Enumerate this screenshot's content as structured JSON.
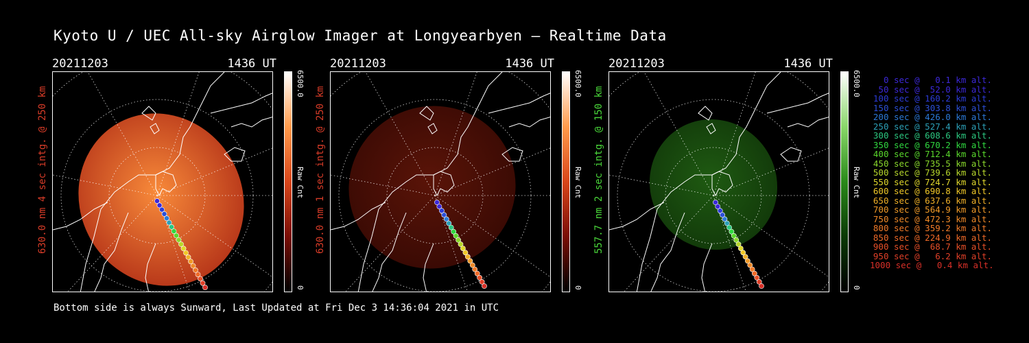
{
  "title": "Kyoto U / UEC All-sky Airglow Imager at Longyearbyen — Realtime Data",
  "footer": "Bottom side is always Sunward, Last Updated at Fri Dec  3 14:36:04 2021 in UTC",
  "panels": [
    {
      "date": "20211203",
      "time": "1436 UT",
      "ylabel": "630.0 nm 4 sec intg. @ 250 km",
      "ylabel_color": "#d83c28",
      "cbar_max": "6500.0",
      "cbar_min": "0",
      "cbar_label": "Raw Cnt",
      "colors": {
        "bright": "#f88a3a",
        "dim": "#b8381a",
        "bar": [
          "#000000",
          "#7a0d05",
          "#d8451a",
          "#ff9a4a",
          "#ffffff"
        ]
      }
    },
    {
      "date": "20211203",
      "time": "1436 UT",
      "ylabel": "630.0 nm 1 sec intg. @ 250 km",
      "ylabel_color": "#d83c28",
      "cbar_max": "6500.0",
      "cbar_min": "0",
      "cbar_label": "Raw Cnt",
      "colors": {
        "bright": "#5a1408",
        "dim": "#3a0a04",
        "bar": [
          "#000000",
          "#7a0d05",
          "#d8451a",
          "#ff9a4a",
          "#ffffff"
        ]
      }
    },
    {
      "date": "20211203",
      "time": "1436 UT",
      "ylabel": "557.7 nm 2 sec intg. @ 150 km",
      "ylabel_color": "#4ad83a",
      "cbar_max": "6500.0",
      "cbar_min": "0",
      "cbar_label": "Raw Cnt",
      "colors": {
        "bright": "#1f5a12",
        "dim": "#123a0a",
        "bar": [
          "#000000",
          "#0b3a06",
          "#2a8a1a",
          "#8ad86a",
          "#ffffff"
        ]
      }
    }
  ],
  "legend": [
    {
      "text": "0 sec @   0.1 km alt.",
      "color": "#3c28d8"
    },
    {
      "text": "50 sec @  52.0 km alt.",
      "color": "#3c28d8"
    },
    {
      "text": "100 sec @ 160.2 km alt.",
      "color": "#2c3cd8"
    },
    {
      "text": "150 sec @ 303.8 km alt.",
      "color": "#2c50d8"
    },
    {
      "text": "200 sec @ 426.0 km alt.",
      "color": "#2c7ad8"
    },
    {
      "text": "250 sec @ 527.4 km alt.",
      "color": "#2ca0b8"
    },
    {
      "text": "300 sec @ 608.6 km alt.",
      "color": "#2cc880"
    },
    {
      "text": "350 sec @ 670.2 km alt.",
      "color": "#30d840"
    },
    {
      "text": "400 sec @ 712.4 km alt.",
      "color": "#5ad82c"
    },
    {
      "text": "450 sec @ 735.5 km alt.",
      "color": "#8ad82c"
    },
    {
      "text": "500 sec @ 739.6 km alt.",
      "color": "#b8d82c"
    },
    {
      "text": "550 sec @ 724.7 km alt.",
      "color": "#e0d82c"
    },
    {
      "text": "600 sec @ 690.8 km alt.",
      "color": "#f0c828"
    },
    {
      "text": "650 sec @ 637.6 km alt.",
      "color": "#f0b028"
    },
    {
      "text": "700 sec @ 564.9 km alt.",
      "color": "#f09a28"
    },
    {
      "text": "750 sec @ 472.3 km alt.",
      "color": "#f08a28"
    },
    {
      "text": "800 sec @ 359.2 km alt.",
      "color": "#f07a28"
    },
    {
      "text": "850 sec @ 224.9 km alt.",
      "color": "#f06a28"
    },
    {
      "text": "900 sec @  68.7 km alt.",
      "color": "#e85028"
    },
    {
      "text": "950 sec @   6.2 km alt.",
      "color": "#e04028"
    },
    {
      "text": "1000 sec @   0.4 km alt.",
      "color": "#d83028"
    }
  ]
}
